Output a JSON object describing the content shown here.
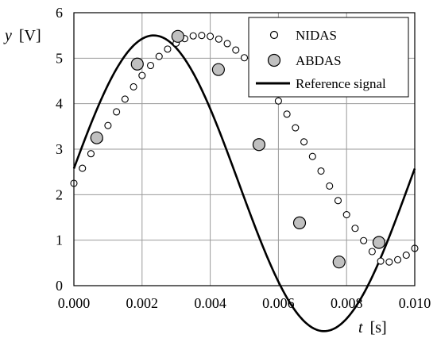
{
  "chart_data": {
    "type": "scatter",
    "xlabel": {
      "var": "t",
      "unit": "[s]"
    },
    "ylabel": {
      "var": "y",
      "unit": "[V]"
    },
    "xlim": [
      0,
      0.01
    ],
    "ylim": [
      0,
      6
    ],
    "x_ticks": [
      "0.000",
      "0.002",
      "0.004",
      "0.006",
      "0.008",
      "0.010"
    ],
    "y_ticks": [
      "0",
      "1",
      "2",
      "3",
      "4",
      "5",
      "6"
    ],
    "grid": true,
    "legend_position": "top-right",
    "series": [
      {
        "name": "NIDAS",
        "marker": "small open circle",
        "color": "#000000",
        "points": [
          [
            0.0,
            2.25
          ],
          [
            0.00025,
            2.58
          ],
          [
            0.0005,
            2.9
          ],
          [
            0.00075,
            3.22
          ],
          [
            0.001,
            3.52
          ],
          [
            0.00125,
            3.82
          ],
          [
            0.0015,
            4.1
          ],
          [
            0.00175,
            4.37
          ],
          [
            0.002,
            4.62
          ],
          [
            0.00225,
            4.84
          ],
          [
            0.0025,
            5.04
          ],
          [
            0.00275,
            5.2
          ],
          [
            0.003,
            5.33
          ],
          [
            0.00325,
            5.43
          ],
          [
            0.0035,
            5.49
          ],
          [
            0.00375,
            5.5
          ],
          [
            0.004,
            5.48
          ],
          [
            0.00425,
            5.42
          ],
          [
            0.0045,
            5.32
          ],
          [
            0.00475,
            5.18
          ],
          [
            0.005,
            5.01
          ],
          [
            0.00525,
            4.81
          ],
          [
            0.0055,
            4.58
          ],
          [
            0.00575,
            4.33
          ],
          [
            0.006,
            4.06
          ],
          [
            0.00625,
            3.77
          ],
          [
            0.0065,
            3.47
          ],
          [
            0.00675,
            3.16
          ],
          [
            0.007,
            2.84
          ],
          [
            0.00725,
            2.52
          ],
          [
            0.0075,
            2.19
          ],
          [
            0.00775,
            1.87
          ],
          [
            0.008,
            1.56
          ],
          [
            0.00825,
            1.26
          ],
          [
            0.0085,
            0.99
          ],
          [
            0.00875,
            0.75
          ],
          [
            0.009,
            0.54
          ],
          [
            0.00925,
            0.52
          ],
          [
            0.0095,
            0.57
          ],
          [
            0.00975,
            0.67
          ],
          [
            0.01,
            0.82
          ]
        ]
      },
      {
        "name": "ABDAS",
        "marker": "large gray circle",
        "color": "#c0c0c0",
        "points": [
          [
            0.00067,
            3.25
          ],
          [
            0.00186,
            4.87
          ],
          [
            0.00305,
            5.48
          ],
          [
            0.00424,
            4.75
          ],
          [
            0.00543,
            3.1
          ],
          [
            0.00662,
            1.38
          ],
          [
            0.00778,
            0.52
          ],
          [
            0.00895,
            0.95
          ]
        ]
      },
      {
        "name": "Reference signal",
        "marker": "line",
        "color": "#000000",
        "function": "2.25 + 3.25 * sin(2π·t/0.01 + 0.10)"
      }
    ]
  }
}
